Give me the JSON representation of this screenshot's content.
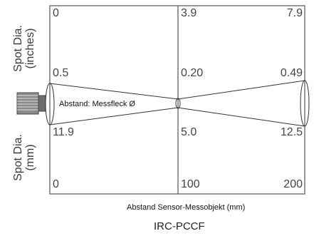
{
  "labels": {
    "inches_axis": "Spot Dia.\n(inches)",
    "mm_axis": "Spot Dia.\n(mm)",
    "beam_note": "Abstand: Messfleck Ø",
    "x_axis_caption": "Abstand Sensor-Messobjekt (mm)",
    "model": "IRC-PCCF"
  },
  "top_row": [
    "0",
    "3.9",
    "7.9"
  ],
  "inches_row": [
    "0.5",
    "0.20",
    "0.49"
  ],
  "mm_row": [
    "11.9",
    "5.0",
    "12.5"
  ],
  "bottom_row": [
    "0",
    "100",
    "200"
  ]
}
